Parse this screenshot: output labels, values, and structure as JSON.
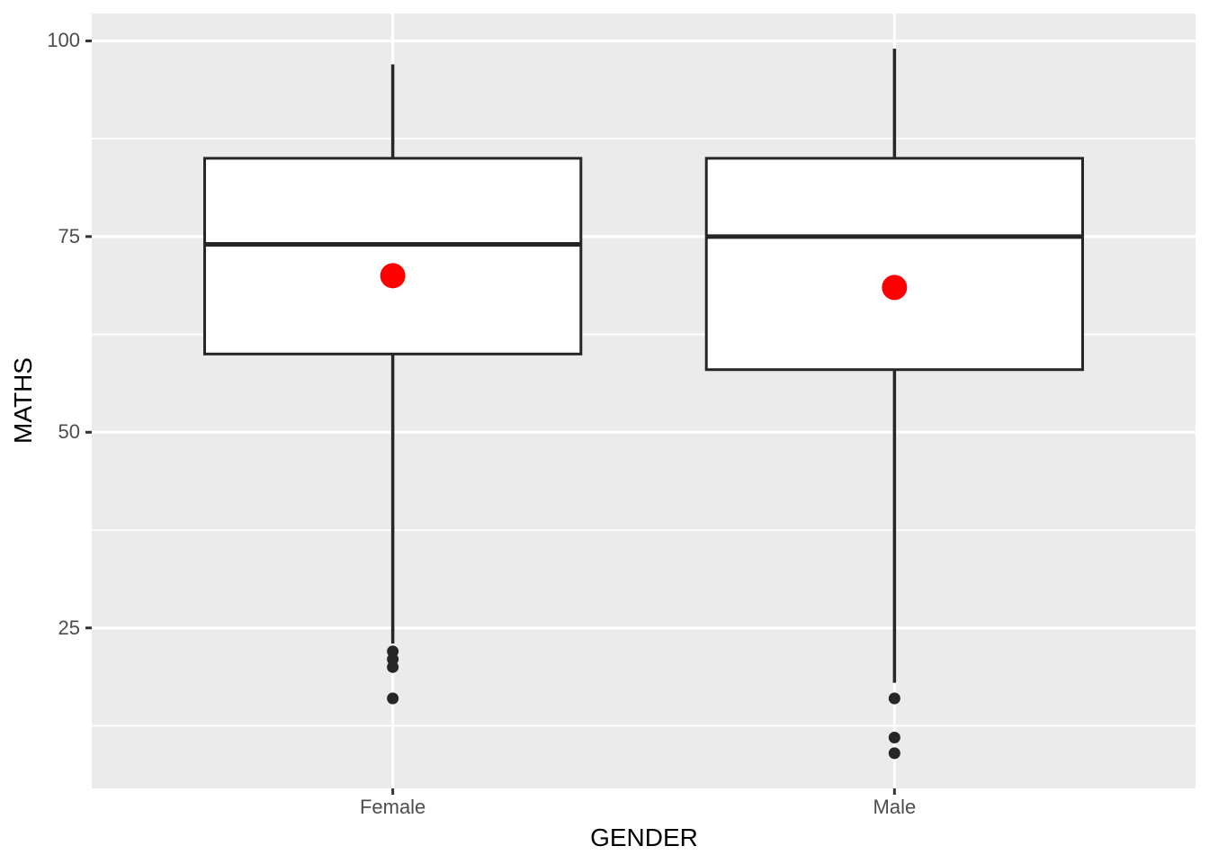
{
  "chart_data": {
    "type": "boxplot",
    "title": "",
    "xlabel": "GENDER",
    "ylabel": "MATHS",
    "ylim": [
      4.5,
      103.5
    ],
    "yticks": [
      25,
      50,
      75,
      100
    ],
    "yminor": [
      12.5,
      37.5,
      62.5,
      87.5
    ],
    "grid": "major-and-minor-white-on-grey",
    "legend": "none",
    "categories": [
      "Female",
      "Male"
    ],
    "series": [
      {
        "category": "Female",
        "whisker_max": 97,
        "q3": 85,
        "median": 74,
        "q1": 60,
        "whisker_min": 23,
        "mean": 70,
        "outliers": [
          22,
          21,
          20,
          16
        ]
      },
      {
        "category": "Male",
        "whisker_max": 99,
        "q3": 85,
        "median": 75,
        "q1": 58,
        "whisker_min": 18,
        "mean": 68.5,
        "outliers": [
          16,
          11,
          9
        ]
      }
    ],
    "colors": {
      "panel_background": "#EBEBEB",
      "gridline": "#FFFFFF",
      "box_fill": "#FFFFFF",
      "box_stroke": "#262626",
      "median_stroke": "#262626",
      "whisker_stroke": "#262626",
      "outlier_fill": "#262626",
      "mean_fill": "#FF0000",
      "tick_mark": "#333333",
      "tick_text": "#4D4D4D",
      "axis_title_text": "#000000"
    }
  }
}
